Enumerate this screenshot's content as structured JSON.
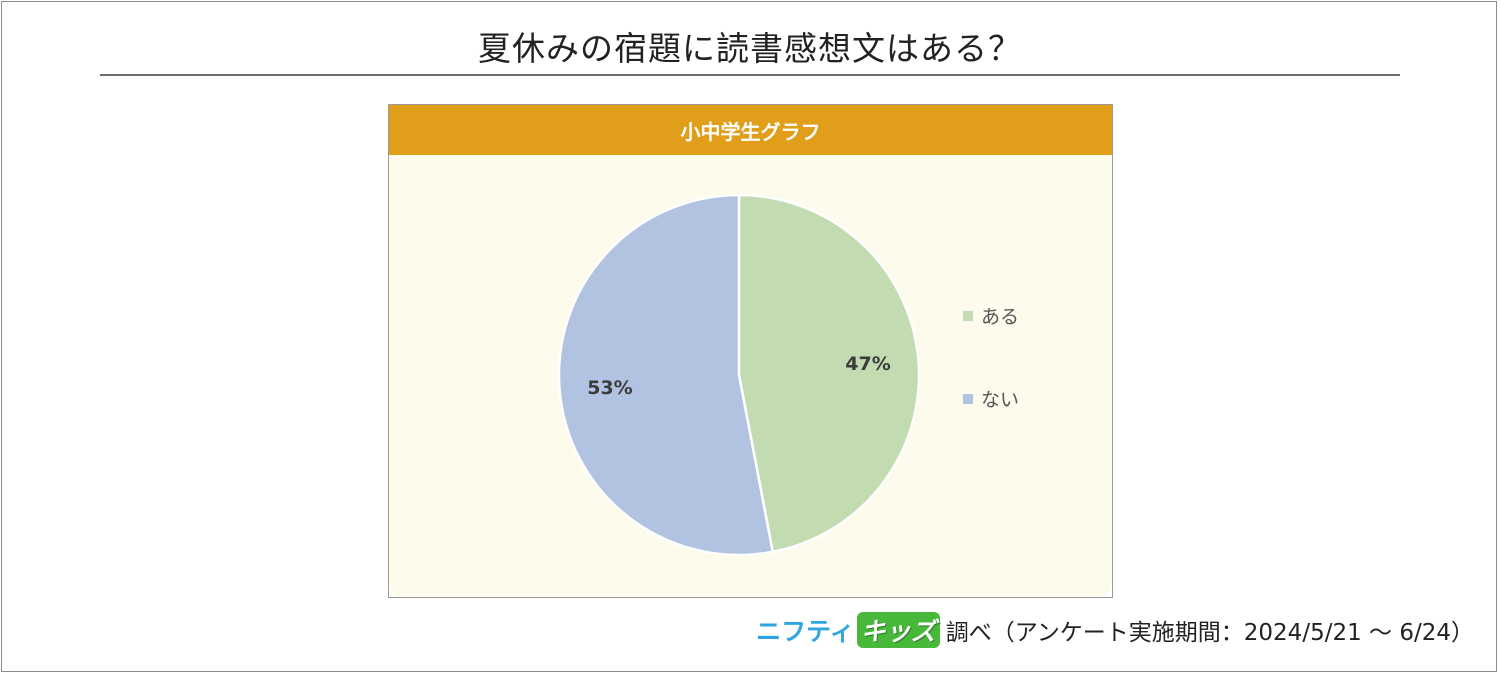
{
  "title": "夏休みの宿題に読書感想文はある？",
  "panel_header": "小中学生グラフ",
  "chart_data": {
    "type": "pie",
    "title": "夏休みの宿題に読書感想文はある？",
    "subtitle": "小中学生グラフ",
    "categories": [
      "ある",
      "ない"
    ],
    "values": [
      47,
      53
    ],
    "labels": [
      "47%",
      "53%"
    ],
    "colors": [
      "#c2dbb0",
      "#b2c2e1"
    ],
    "legend_position": "right"
  },
  "footer": {
    "logo_part1": "ニフティ",
    "logo_part2": "キッズ",
    "text": "調べ（アンケート実施期間：2024/5/21 ～ 6/24）"
  }
}
